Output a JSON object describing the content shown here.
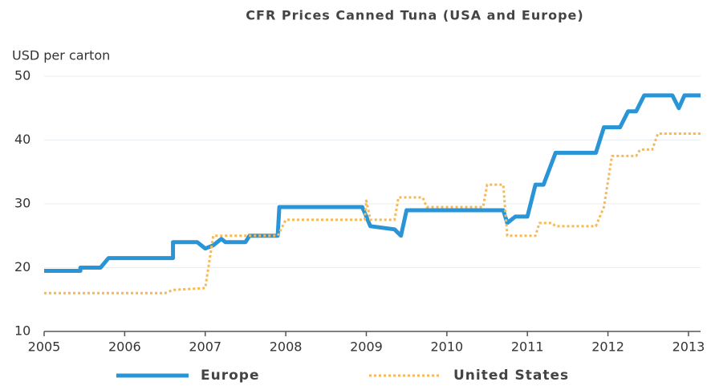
{
  "chart_data": {
    "type": "line",
    "title": "CFR Prices Canned Tuna (USA and Europe)",
    "y_label": "USD per carton",
    "xlim": [
      2005,
      2013.15
    ],
    "xticks": [
      2005,
      2006,
      2007,
      2008,
      2009,
      2010,
      2011,
      2012,
      2013
    ],
    "ylim": [
      10,
      50
    ],
    "yticks": [
      10,
      20,
      30,
      40,
      50
    ],
    "grid": true,
    "series": [
      {
        "name": "Europe",
        "color": "#2a95d6",
        "style": "solid",
        "x": [
          2005.0,
          2005.45,
          2005.45,
          2005.7,
          2005.8,
          2006.6,
          2006.6,
          2006.9,
          2007.0,
          2007.1,
          2007.2,
          2007.25,
          2007.5,
          2007.55,
          2007.9,
          2007.92,
          2008.95,
          2009.05,
          2009.35,
          2009.43,
          2009.5,
          2010.7,
          2010.75,
          2010.85,
          2011.0,
          2011.1,
          2011.2,
          2011.35,
          2011.85,
          2011.95,
          2012.15,
          2012.25,
          2012.35,
          2012.45,
          2012.8,
          2012.88,
          2012.95,
          2013.15
        ],
        "values": [
          19.5,
          19.5,
          20,
          20,
          21.5,
          21.5,
          24,
          24,
          23,
          23.5,
          24.5,
          24,
          24,
          25,
          25,
          29.5,
          29.5,
          26.5,
          26,
          25,
          29,
          29,
          27,
          28,
          28,
          33,
          33,
          38,
          38,
          42,
          42,
          44.5,
          44.5,
          47,
          47,
          45,
          47,
          47
        ]
      },
      {
        "name": "United States",
        "color": "#f5b95a",
        "style": "dotted",
        "x": [
          2005.0,
          2006.5,
          2006.6,
          2007.0,
          2007.1,
          2007.9,
          2008.0,
          2008.98,
          2009.0,
          2009.05,
          2009.35,
          2009.4,
          2009.7,
          2009.75,
          2010.45,
          2010.5,
          2010.7,
          2010.75,
          2011.1,
          2011.15,
          2011.3,
          2011.35,
          2011.85,
          2011.95,
          2012.05,
          2012.35,
          2012.4,
          2012.55,
          2012.62,
          2013.15
        ],
        "values": [
          16,
          16,
          16.5,
          16.8,
          25,
          25,
          27.5,
          27.5,
          30.5,
          27.5,
          27.5,
          31,
          31,
          29.5,
          29.5,
          33,
          33,
          25,
          25,
          27,
          27,
          26.5,
          26.5,
          29.5,
          37.5,
          37.5,
          38.5,
          38.5,
          41,
          41
        ]
      }
    ]
  }
}
